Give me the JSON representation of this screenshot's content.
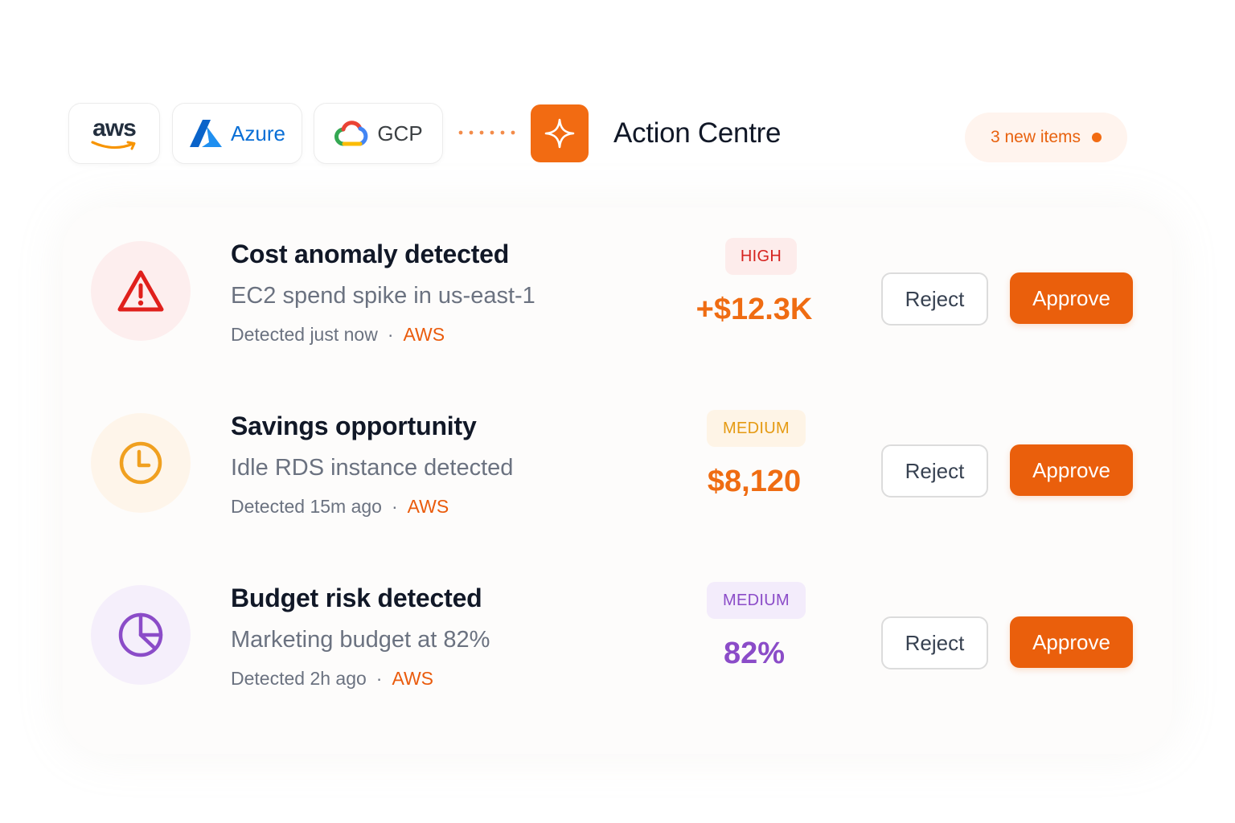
{
  "providers": [
    {
      "name": "aws",
      "icon": "aws-logo"
    },
    {
      "name": "Azure",
      "icon": "azure-logo"
    },
    {
      "name": "GCP",
      "icon": "google-cloud-logo"
    }
  ],
  "header": {
    "title": "Action Centre",
    "brand_icon": "sparkle-icon",
    "new_items": "3 new items"
  },
  "colors": {
    "accent": "#ea5f0c",
    "high": "#d6231f",
    "medium_warn": "#e59a12",
    "medium_purple": "#8b4cc8"
  },
  "actions": [
    {
      "icon": "warning-triangle-icon",
      "title": "Cost anomaly detected",
      "description": "EC2 spend spike in us-east-1",
      "detected": "Detected just now",
      "separator": "·",
      "source": "AWS",
      "severity": "HIGH",
      "amount": "+$12.3K",
      "reject_label": "Reject",
      "approve_label": "Approve"
    },
    {
      "icon": "clock-icon",
      "title": "Savings opportunity",
      "description": "Idle RDS instance detected",
      "detected": "Detected 15m ago",
      "separator": "·",
      "source": "AWS",
      "severity": "MEDIUM",
      "amount": "$8,120",
      "reject_label": "Reject",
      "approve_label": "Approve"
    },
    {
      "icon": "pie-chart-icon",
      "title": "Budget risk detected",
      "description": "Marketing budget at 82%",
      "detected": "Detected 2h ago",
      "separator": "·",
      "source": "AWS",
      "severity": "MEDIUM",
      "amount": "82%",
      "reject_label": "Reject",
      "approve_label": "Approve"
    }
  ]
}
